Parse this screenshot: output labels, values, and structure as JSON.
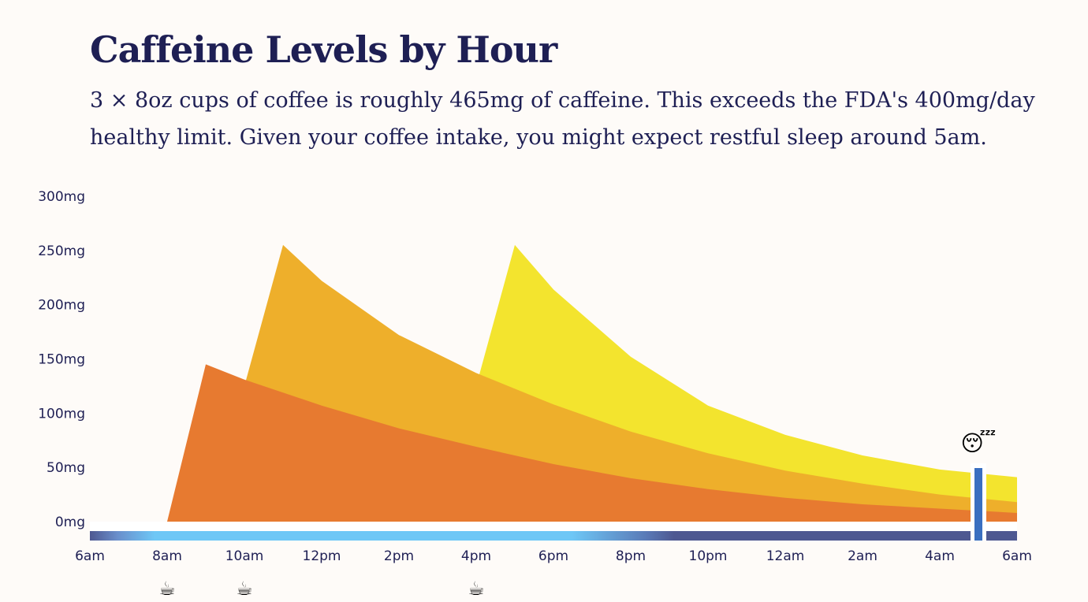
{
  "header": {
    "title": "Caffeine Levels by Hour",
    "subtitle": "3 × 8oz cups of coffee is roughly 465mg of caffeine. This exceeds the FDA's 400mg/day healthy limit. Given your coffee intake, you might expect restful sleep around 5am."
  },
  "chart_data": {
    "type": "area",
    "stacked": false,
    "x_unit": "hour of day (6 = 6am, 30 = 6am next day)",
    "x_range": [
      6,
      30
    ],
    "ylim": [
      0,
      300
    ],
    "y_ticks": [
      {
        "value": 0,
        "label": "0mg"
      },
      {
        "value": 50,
        "label": "50mg"
      },
      {
        "value": 100,
        "label": "100mg"
      },
      {
        "value": 150,
        "label": "150mg"
      },
      {
        "value": 200,
        "label": "200mg"
      },
      {
        "value": 250,
        "label": "250mg"
      },
      {
        "value": 300,
        "label": "300mg"
      }
    ],
    "x_ticks": [
      {
        "value": 6,
        "label": "6am"
      },
      {
        "value": 8,
        "label": "8am"
      },
      {
        "value": 10,
        "label": "10am"
      },
      {
        "value": 12,
        "label": "12pm"
      },
      {
        "value": 14,
        "label": "2pm"
      },
      {
        "value": 16,
        "label": "4pm"
      },
      {
        "value": 18,
        "label": "6pm"
      },
      {
        "value": 20,
        "label": "8pm"
      },
      {
        "value": 22,
        "label": "10pm"
      },
      {
        "value": 24,
        "label": "12am"
      },
      {
        "value": 26,
        "label": "2am"
      },
      {
        "value": 28,
        "label": "4am"
      },
      {
        "value": 30,
        "label": "6am"
      }
    ],
    "series": [
      {
        "color": "#f3e42e",
        "x": [
          16,
          17,
          18,
          20,
          22,
          24,
          26,
          28,
          30
        ],
        "y": [
          125,
          255,
          214,
          152,
          107,
          80,
          61,
          48,
          41
        ]
      },
      {
        "color": "#eeaf2b",
        "x": [
          10,
          11,
          12,
          14,
          16,
          18,
          20,
          22,
          24,
          26,
          28,
          30
        ],
        "y": [
          125,
          255,
          222,
          172,
          137,
          108,
          83,
          63,
          47,
          35,
          25,
          18
        ]
      },
      {
        "color": "#e77a30",
        "x": [
          8,
          9,
          10,
          12,
          14,
          16,
          18,
          20,
          22,
          24,
          26,
          28,
          30
        ],
        "y": [
          0,
          145,
          131,
          107,
          86,
          69,
          53,
          40,
          30,
          22,
          16,
          12,
          8
        ]
      }
    ],
    "coffee_cups": [
      {
        "x": 8,
        "icon": "coffee-cup-icon",
        "glyph": "☕"
      },
      {
        "x": 10,
        "icon": "coffee-cup-icon",
        "glyph": "☕"
      },
      {
        "x": 16,
        "icon": "coffee-cup-icon",
        "glyph": "☕"
      }
    ],
    "sleep_marker": {
      "x": 29,
      "icon": "sleeping-face-icon",
      "glyph": "😴"
    },
    "timeline_colors": {
      "night": "#4e5891",
      "day": "#6ec7f6",
      "sleep_bar": "#3a6fc0",
      "baseline": "#ffffff"
    }
  }
}
